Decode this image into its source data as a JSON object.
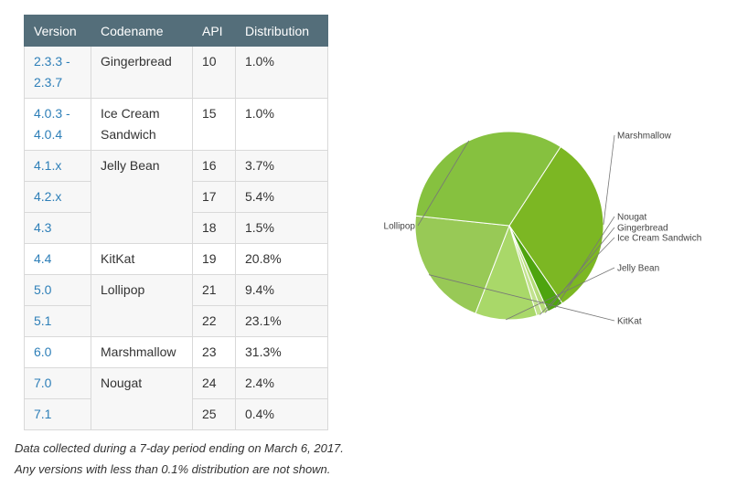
{
  "table": {
    "headers": [
      "Version",
      "Codename",
      "API",
      "Distribution"
    ],
    "rows": [
      {
        "version": "2.3.3 -\n2.3.7",
        "codename": "Gingerbread",
        "api": "10",
        "distribution": "1.0%"
      },
      {
        "version": "4.0.3 -\n4.0.4",
        "codename": "Ice Cream\nSandwich",
        "api": "15",
        "distribution": "1.0%"
      },
      {
        "version": "4.1.x",
        "codename": "Jelly Bean",
        "api": "16",
        "distribution": "3.7%"
      },
      {
        "version": "4.2.x",
        "codename": "",
        "api": "17",
        "distribution": "5.4%"
      },
      {
        "version": "4.3",
        "codename": "",
        "api": "18",
        "distribution": "1.5%"
      },
      {
        "version": "4.4",
        "codename": "KitKat",
        "api": "19",
        "distribution": "20.8%"
      },
      {
        "version": "5.0",
        "codename": "Lollipop",
        "api": "21",
        "distribution": "9.4%"
      },
      {
        "version": "5.1",
        "codename": "",
        "api": "22",
        "distribution": "23.1%"
      },
      {
        "version": "6.0",
        "codename": "Marshmallow",
        "api": "23",
        "distribution": "31.3%"
      },
      {
        "version": "7.0",
        "codename": "Nougat",
        "api": "24",
        "distribution": "2.4%"
      },
      {
        "version": "7.1",
        "codename": "",
        "api": "25",
        "distribution": "0.4%"
      }
    ]
  },
  "notes": {
    "line1": "Data collected during a 7-day period ending on March 6, 2017.",
    "line2": "Any versions with less than 0.1% distribution are not shown."
  },
  "chart_data": {
    "type": "pie",
    "title": "",
    "slices": [
      {
        "label": "Marshmallow",
        "value": 31.3,
        "color": "#7cb723"
      },
      {
        "label": "Nougat",
        "value": 2.8,
        "color": "#4ea40f"
      },
      {
        "label": "Gingerbread",
        "value": 1.0,
        "color": "#b5dc79"
      },
      {
        "label": "Ice Cream Sandwich",
        "value": 1.0,
        "color": "#c2e28f"
      },
      {
        "label": "Jelly Bean",
        "value": 10.6,
        "color": "#a9d869"
      },
      {
        "label": "KitKat",
        "value": 20.8,
        "color": "#98c956"
      },
      {
        "label": "Lollipop",
        "value": 32.5,
        "color": "#86c13f"
      }
    ],
    "start_angle_deg": -57,
    "direction": "clockwise",
    "label_color": "#444444",
    "slice_border_color": "#ffffff"
  }
}
